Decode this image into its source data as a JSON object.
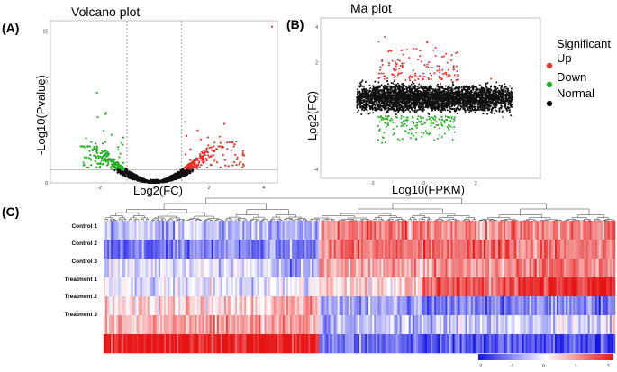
{
  "panels": {
    "a": {
      "letter": "(A)"
    },
    "b": {
      "letter": "(B)"
    },
    "c": {
      "letter": "(C)"
    }
  },
  "legend": {
    "title": "Significant",
    "items": [
      {
        "label": "Up",
        "color": "#e8312b"
      },
      {
        "label": "Down",
        "color": "#22b022"
      },
      {
        "label": "Normal",
        "color": "#111111"
      }
    ]
  },
  "chart_data": [
    {
      "type": "scatter",
      "title": "Volcano plot",
      "xlabel": "Log2(FC)",
      "ylabel": "-Log10(Pvalue)",
      "xlim": [
        -3.8,
        4.5
      ],
      "ylim": [
        0,
        16
      ],
      "xticks": [
        "-2",
        "0",
        "2",
        "4"
      ],
      "yticks": [
        "0",
        "5",
        "10",
        "15"
      ],
      "vlines": [
        -1,
        1
      ],
      "hline": 1.3,
      "series": [
        {
          "name": "Normal",
          "color": "#111111",
          "points": "volcano-normal"
        },
        {
          "name": "Up",
          "color": "#e8312b",
          "points": "volcano-up"
        },
        {
          "name": "Down",
          "color": "#22b022",
          "points": "volcano-down"
        }
      ],
      "notable_points": [
        {
          "series": "Up",
          "x": 4.3,
          "y": 15.4
        },
        {
          "series": "Down",
          "x": -2.1,
          "y": 8.9
        }
      ]
    },
    {
      "type": "scatter",
      "title": "Ma plot",
      "xlabel": "Log10(FPKM)",
      "ylabel": "Log2(FC)",
      "xlim": [
        -4,
        4.5
      ],
      "ylim": [
        -4.5,
        4.5
      ],
      "xticks": [
        "-2",
        "0",
        "2"
      ],
      "yticks": [
        "-4",
        "-2",
        "0",
        "2",
        "4"
      ],
      "series": [
        {
          "name": "Normal",
          "color": "#111111"
        },
        {
          "name": "Up",
          "color": "#e8312b"
        },
        {
          "name": "Down",
          "color": "#22b022"
        }
      ]
    },
    {
      "type": "heatmap",
      "rows": [
        "Control 1",
        "Control 2",
        "Control 3",
        "Treatment 1",
        "Treatment 2",
        "Treatment 3",
        ""
      ],
      "color_scale": {
        "low": "#1515e6",
        "mid": "#ffffff",
        "high": "#e61515"
      },
      "colorbar_ticks": [
        "-2",
        "-1",
        "0",
        "1",
        "2"
      ],
      "clusters": [
        {
          "from": 0.0,
          "to": 0.05,
          "values": [
            -0.6,
            -1.2,
            -0.3,
            -0.1,
            0.3,
            0.6,
            2.0
          ]
        },
        {
          "from": 0.05,
          "to": 0.33,
          "values": [
            -0.6,
            -1.1,
            -0.2,
            -0.2,
            0.4,
            0.8,
            2.0
          ]
        },
        {
          "from": 0.33,
          "to": 0.42,
          "values": [
            -0.7,
            -1.0,
            -0.8,
            -0.2,
            0.9,
            0.8,
            2.0
          ]
        },
        {
          "from": 0.42,
          "to": 0.62,
          "values": [
            1.1,
            1.2,
            0.7,
            0.4,
            -0.8,
            -0.6,
            -1.2
          ]
        },
        {
          "from": 0.62,
          "to": 0.8,
          "values": [
            1.0,
            1.3,
            0.8,
            1.4,
            -1.1,
            -0.5,
            -1.4
          ]
        },
        {
          "from": 0.8,
          "to": 1.0,
          "values": [
            1.1,
            1.1,
            1.2,
            1.7,
            -1.0,
            -0.4,
            -1.6
          ]
        }
      ]
    }
  ]
}
